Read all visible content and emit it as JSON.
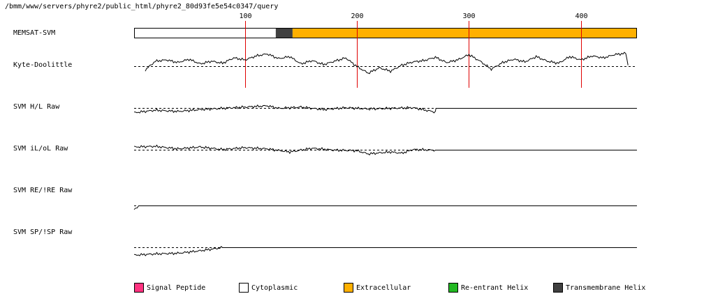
{
  "title": "/bmm/www/servers/phyre2/public_html/phyre2_80d93fe5e54c0347/query",
  "tracks": [
    {
      "label": "MEMSAT-SVM"
    },
    {
      "label": "Kyte-Doolittle"
    },
    {
      "label": "SVM H/L Raw"
    },
    {
      "label": "SVM iL/oL Raw"
    },
    {
      "label": "SVM RE/!RE Raw"
    },
    {
      "label": "SVM SP/!SP Raw"
    }
  ],
  "legend": [
    {
      "label": "Signal Peptide",
      "color": "#ff3380"
    },
    {
      "label": "Cytoplasmic",
      "color": "#ffffff"
    },
    {
      "label": "Extracellular",
      "color": "#ffb000"
    },
    {
      "label": "Re-entrant Helix",
      "color": "#22b822"
    },
    {
      "label": "Transmembrane Helix",
      "color": "#404040"
    }
  ],
  "chart_data": {
    "type": "line",
    "sequence_length": 450,
    "xlim": [
      1,
      450
    ],
    "tick_values": [
      100,
      200,
      300,
      400
    ],
    "tick_labels": [
      "100",
      "200",
      "300",
      "400"
    ],
    "marker_color": "#e00000",
    "topology": [
      {
        "type": "Cytoplasmic",
        "start": 1,
        "end": 127,
        "color": "#ffffff"
      },
      {
        "type": "Transmembrane Helix",
        "start": 128,
        "end": 142,
        "color": "#404040"
      },
      {
        "type": "Extracellular",
        "start": 143,
        "end": 450,
        "color": "#ffb000"
      }
    ],
    "kyte_doolittle": {
      "x": [
        11,
        20,
        30,
        40,
        50,
        60,
        70,
        80,
        90,
        100,
        110,
        120,
        130,
        140,
        150,
        160,
        170,
        180,
        190,
        200,
        210,
        220,
        230,
        240,
        250,
        260,
        270,
        280,
        290,
        300,
        310,
        320,
        330,
        340,
        350,
        360,
        370,
        380,
        390,
        400,
        410,
        420,
        430,
        440,
        442
      ],
      "y": [
        -0.5,
        0.8,
        1.0,
        0.6,
        1.1,
        0.4,
        0.8,
        0.5,
        1.3,
        1.0,
        1.6,
        1.9,
        1.2,
        1.5,
        0.4,
        0.9,
        0.3,
        0.8,
        1.3,
        0.0,
        -1.0,
        -0.2,
        -0.7,
        0.2,
        0.7,
        0.9,
        1.4,
        0.6,
        1.0,
        1.8,
        0.8,
        -0.4,
        0.6,
        1.1,
        0.7,
        1.5,
        0.8,
        0.5,
        1.5,
        1.0,
        1.6,
        1.3,
        1.8,
        2.0,
        0.2
      ]
    },
    "svm_hl_raw": {
      "x": [
        1,
        20,
        40,
        60,
        80,
        100,
        120,
        130,
        150,
        170,
        190,
        210,
        230,
        250,
        270,
        270.5,
        450
      ],
      "y": [
        -0.7,
        -0.3,
        -0.5,
        -0.2,
        0.0,
        0.2,
        0.4,
        0.0,
        0.2,
        -0.2,
        0.1,
        -0.1,
        0.0,
        0.1,
        -0.6,
        0.0,
        0.0
      ]
    },
    "svm_iloL_raw": {
      "x": [
        1,
        20,
        40,
        60,
        80,
        100,
        120,
        140,
        160,
        180,
        200,
        210,
        230,
        240,
        250,
        270,
        450
      ],
      "y": [
        0.5,
        0.6,
        0.2,
        0.5,
        0.1,
        0.4,
        0.2,
        -0.3,
        0.3,
        0.0,
        -0.1,
        -0.6,
        -0.3,
        -0.5,
        0.1,
        0.0,
        0.0
      ]
    },
    "svm_re_raw": {
      "x": [
        1,
        5,
        450
      ],
      "y": [
        -0.7,
        0.0,
        0.0
      ]
    },
    "svm_sp_raw": {
      "x": [
        1,
        20,
        40,
        60,
        80,
        450
      ],
      "y": [
        -1.2,
        -1.0,
        -0.9,
        -0.5,
        0.0,
        0.0
      ]
    }
  }
}
